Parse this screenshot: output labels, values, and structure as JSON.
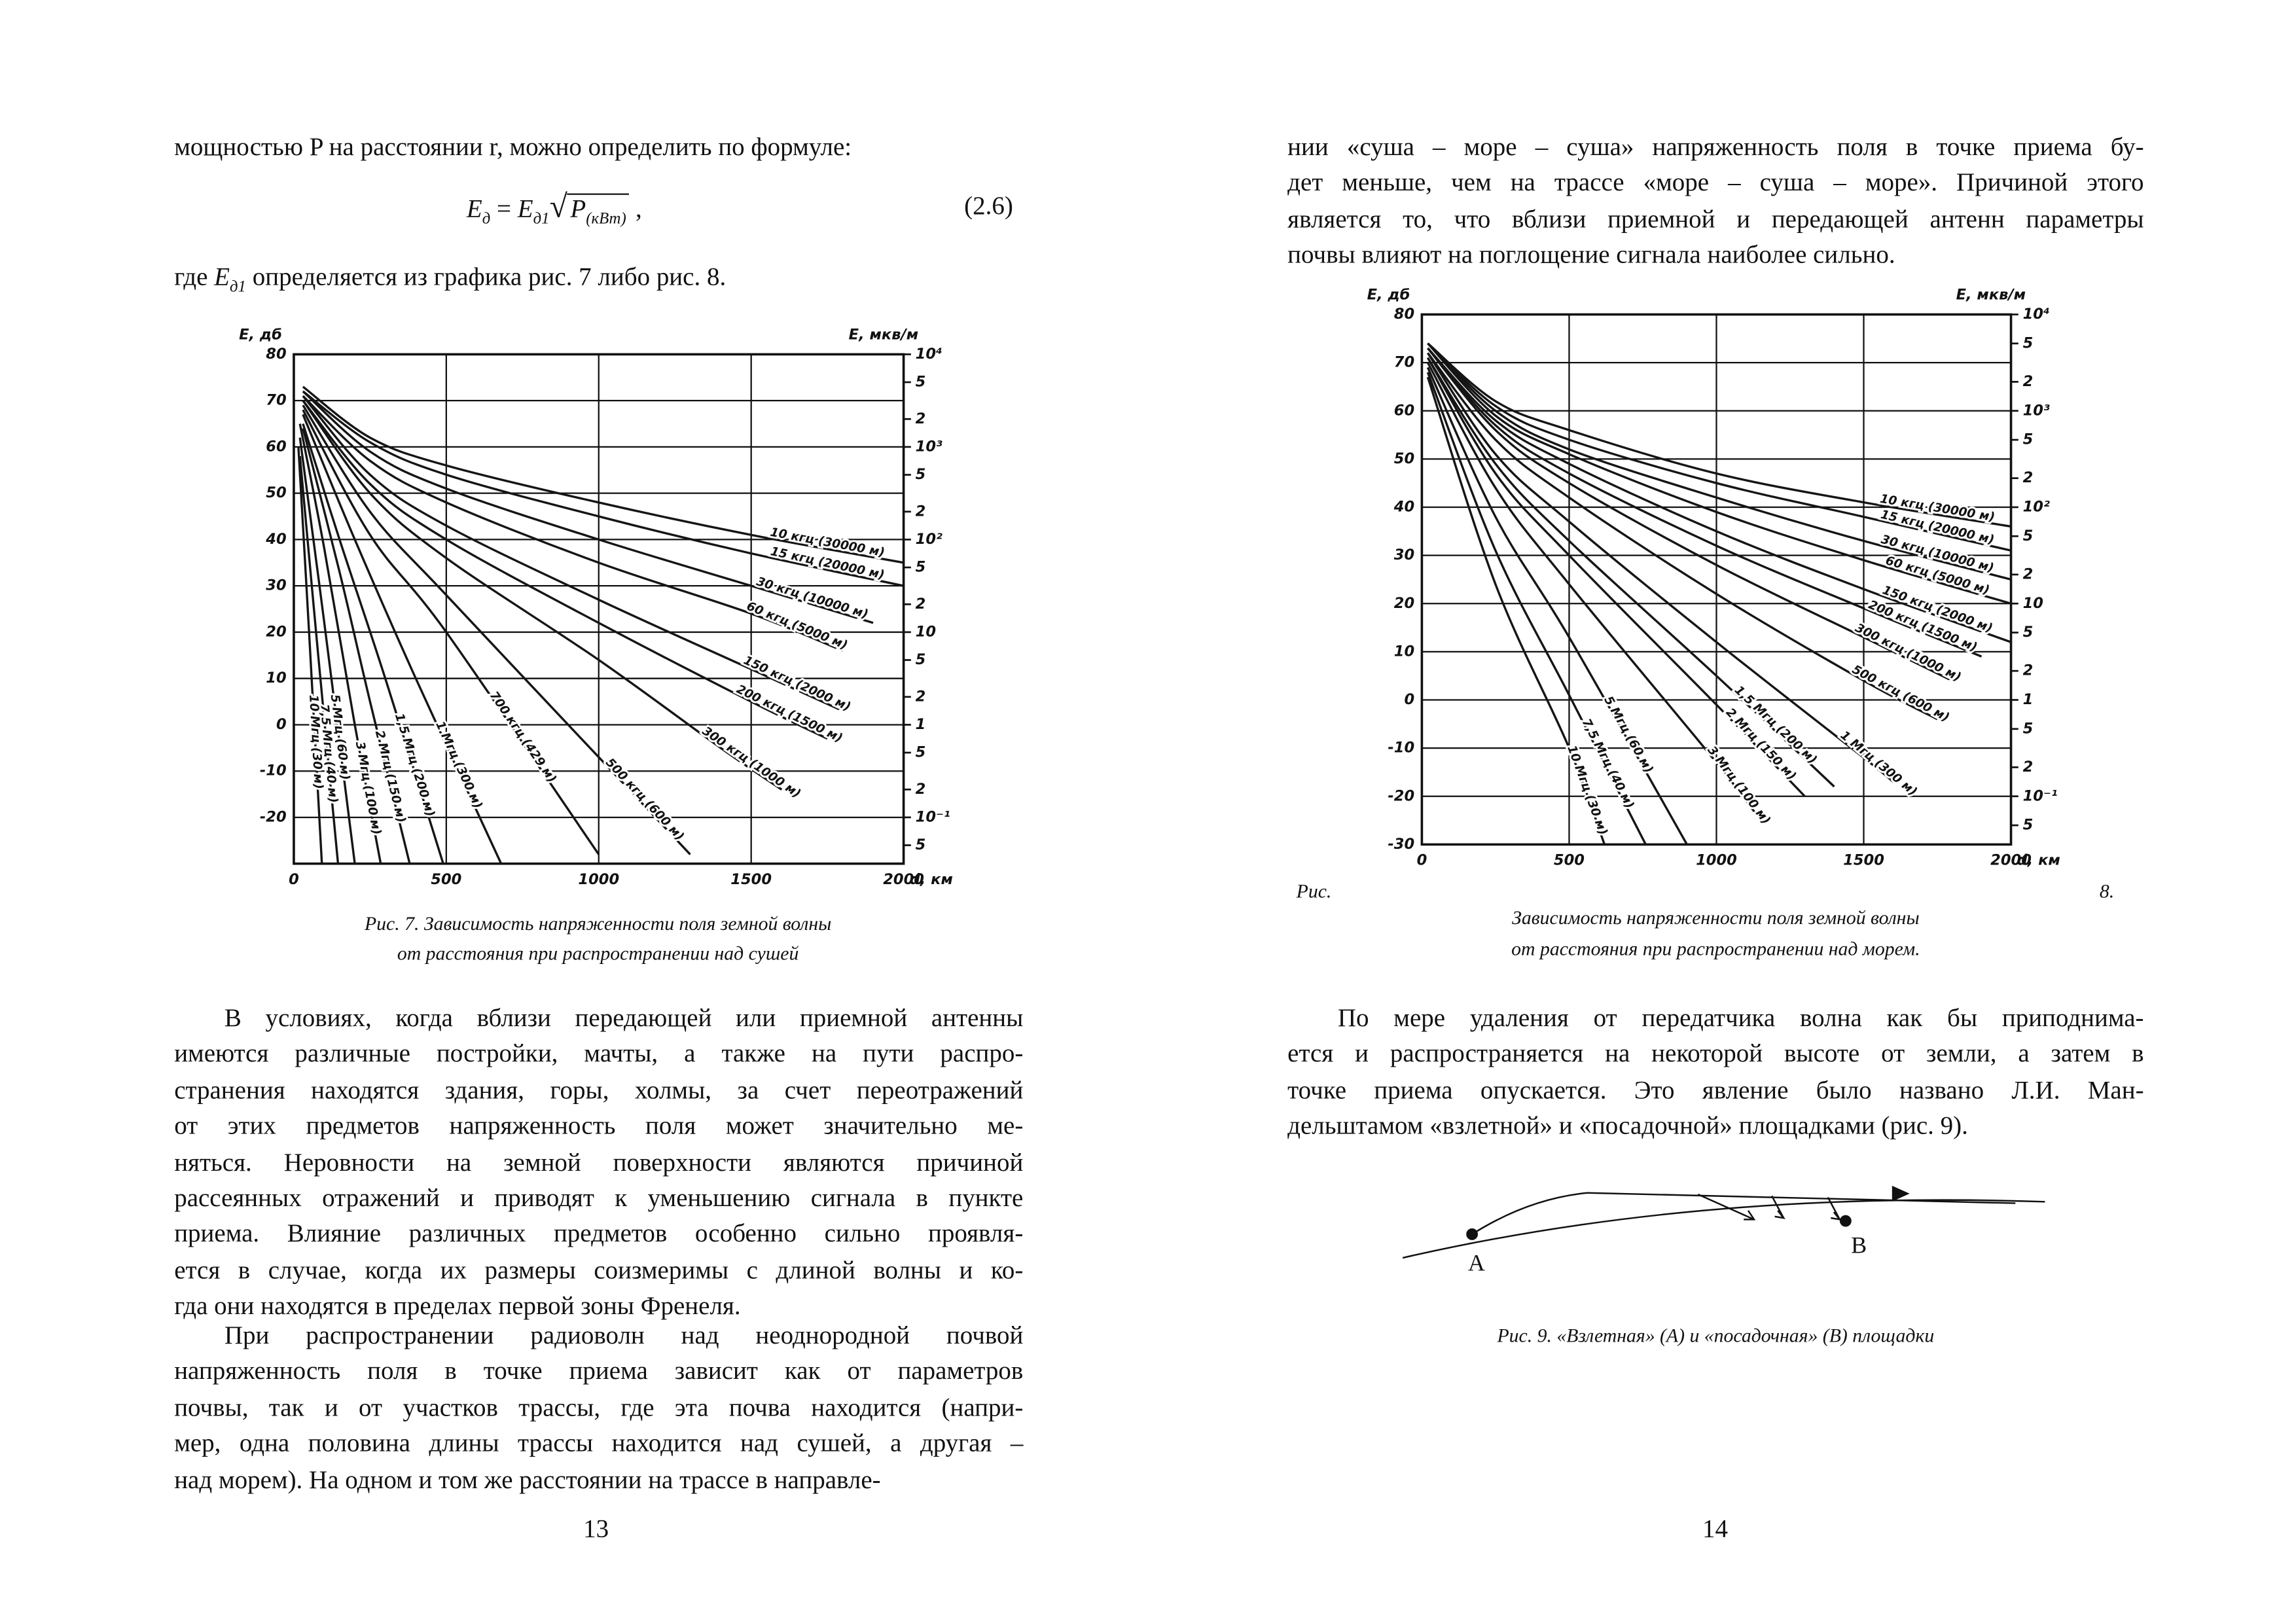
{
  "document": {
    "pages": [
      {
        "intro": "мощностью P на расстоянии r, можно определить по формуле:",
        "formula": {
          "lhs": "E",
          "lhs_sub": "д",
          "op": "=",
          "rhs": "E",
          "rhs_sub": "д1",
          "radical": "√",
          "radicand": "P",
          "radicand_sub": "(кВт)",
          "trail": ",",
          "number": "(2.6)"
        },
        "where": {
          "pre": "где",
          "symbol": "E",
          "sub": "д1",
          "post": "определяется из графика рис. 7 либо рис. 8."
        },
        "figure_caption": [
          "Рис. 7. Зависимость напряженности поля земной волны",
          "от расстояния при распространении над сушей"
        ],
        "paragraphs": [
          [
            "В условиях, когда вблизи передающей или приемной антенны",
            "имеются различные постройки, мачты, а также на пути распро-",
            "странения находятся здания, горы, холмы, за счет переотражений",
            "от этих предметов напряженность поля может значительно ме-",
            "няться. Неровности на земной поверхности являются причиной",
            "рассеянных отражений и приводят к уменьшению сигнала в пункте",
            "приема. Влияние различных предметов особенно сильно проявля-",
            "ется в случае, когда их размеры соизмеримы с длиной волны и ко-",
            "гда они находятся в пределах первой зоны Френеля."
          ],
          [
            "При распространении радиоволн над неоднородной почвой",
            "напряженность поля в точке приема зависит как от параметров",
            "почвы, так и от участков трассы, где эта почва находится (напри-",
            "мер, одна половина длины трассы находится над сушей, а другая –",
            "над морем). На одном и том же расстоянии на трассе в направле-"
          ]
        ],
        "page_number": "13"
      },
      {
        "paragraphs": [
          [
            "нии «суша – море – суша» напряженность поля в точке приема бу-",
            "дет меньше, чем на трассе «море – суша – море». Причиной этого",
            "является то, что вблизи приемной и передающей антенн параметры",
            "почвы влияют на поглощение сигнала наиболее сильно."
          ],
          [
            "По мере удаления от передатчика волна как бы приподнима-",
            "ется и распространяется на некоторой высоте от земли, а затем в",
            "точке приема опускается. Это явление было названо Л.И. Ман-",
            "дельштамом «взлетной» и «посадочной» площадками (рис. 9)."
          ]
        ],
        "figure_label": "Рис.",
        "figure_number": "8.",
        "figure_caption": [
          "Зависимость напряженности поля земной волны",
          "от расстояния при распространении над морем."
        ],
        "diagram": {
          "point_a": "А",
          "point_b": "В",
          "caption": "Рис. 9. «Взлетная» (А) и «посадочная» (В) площадки"
        },
        "page_number": "14"
      }
    ]
  },
  "chart_data": [
    {
      "type": "line",
      "y_label": "E, дб",
      "y2_label": "E, мкв/м",
      "x_label": "d, км",
      "xlim": [
        0,
        2000
      ],
      "xticks": [
        0,
        500,
        1000,
        1500,
        2000
      ],
      "ylim": [
        -30,
        80
      ],
      "yticks": [
        80,
        70,
        60,
        50,
        40,
        30,
        20,
        10,
        0,
        -10,
        -20
      ],
      "y2scale": "log",
      "y2lim": [
        0.031623,
        10000
      ],
      "y2ticks": [
        {
          "value": 10000,
          "label": "10⁴"
        },
        {
          "value": 5000,
          "label": "5"
        },
        {
          "value": 2000,
          "label": "2"
        },
        {
          "value": 1000,
          "label": "10³"
        },
        {
          "value": 500,
          "label": "5"
        },
        {
          "value": 200,
          "label": "2"
        },
        {
          "value": 100,
          "label": "10²"
        },
        {
          "value": 50,
          "label": "5"
        },
        {
          "value": 20,
          "label": "2"
        },
        10,
        {
          "value": 5,
          "label": "5"
        },
        {
          "value": 2,
          "label": "2"
        },
        1,
        {
          "value": 0.5,
          "label": "5"
        },
        {
          "value": 0.2,
          "label": "2"
        },
        {
          "value": 0.1,
          "label": "10⁻¹"
        },
        {
          "value": 0.05,
          "label": "5"
        }
      ],
      "grid": true,
      "color": "#151515",
      "series": [
        {
          "name": "10 кгц (30000 м)",
          "x": [
            30,
            250,
            500,
            1000,
            1500,
            2000
          ],
          "values": [
            73,
            62,
            56,
            48,
            41,
            35
          ]
        },
        {
          "name": "15 кгц (20000 м)",
          "x": [
            30,
            250,
            500,
            1000,
            1500,
            2000
          ],
          "values": [
            72,
            61,
            54,
            45,
            37,
            30
          ]
        },
        {
          "name": "30 кгц (10000 м)",
          "x": [
            30,
            250,
            500,
            1000,
            1500,
            1900
          ],
          "values": [
            72,
            59,
            51,
            40,
            30,
            22
          ]
        },
        {
          "name": "60 кгц (5000 м)",
          "x": [
            30,
            250,
            500,
            1000,
            1500,
            1800
          ],
          "values": [
            71,
            57,
            48,
            35,
            24,
            16
          ]
        },
        {
          "name": "150 кгц (2000 м)",
          "x": [
            30,
            250,
            500,
            1000,
            1500,
            1800
          ],
          "values": [
            71,
            54,
            43,
            27,
            12,
            3
          ]
        },
        {
          "name": "200 кгц (1500 м)",
          "x": [
            30,
            250,
            500,
            1000,
            1500,
            1750
          ],
          "values": [
            70,
            52,
            40,
            22,
            5,
            -3
          ]
        },
        {
          "name": "300 кгц (1000 м)",
          "x": [
            30,
            250,
            500,
            1000,
            1400,
            1600
          ],
          "values": [
            70,
            50,
            36,
            14,
            -5,
            -14
          ]
        },
        {
          "name": "500 кгц (600 м)",
          "x": [
            30,
            250,
            500,
            1000,
            1300
          ],
          "values": [
            69,
            46,
            28,
            -7,
            -28
          ]
        },
        {
          "name": "700 кгц (429 м)",
          "x": [
            30,
            250,
            500,
            1000
          ],
          "values": [
            68,
            41,
            20,
            -28
          ]
        },
        {
          "name": "1 Мгц (300 м)",
          "x": [
            30,
            200,
            400,
            680
          ],
          "values": [
            67,
            40,
            10,
            -30
          ]
        },
        {
          "name": "1,5 Мгц (200 м)",
          "x": [
            30,
            150,
            300,
            490
          ],
          "values": [
            65,
            40,
            10,
            -30
          ]
        },
        {
          "name": "2 Мгц (150 м)",
          "x": [
            30,
            150,
            250,
            380
          ],
          "values": [
            64,
            33,
            5,
            -30
          ]
        },
        {
          "name": "3 Мгц (100 м)",
          "x": [
            20,
            100,
            200,
            285
          ],
          "values": [
            65,
            38,
            0,
            -30
          ]
        },
        {
          "name": "5 Мгц (60 м)",
          "x": [
            20,
            100,
            200
          ],
          "values": [
            62,
            22,
            -30
          ]
        },
        {
          "name": "7,5 Мгц (40 м)",
          "x": [
            20,
            80,
            145
          ],
          "values": [
            58,
            15,
            -30
          ]
        },
        {
          "name": "10 Мгц (30 м)",
          "x": [
            15,
            50,
            92
          ],
          "values": [
            60,
            20,
            -30
          ]
        }
      ]
    },
    {
      "type": "line",
      "y_label": "E, дб",
      "y2_label": "E, мкв/м",
      "x_label": "d, км",
      "xlim": [
        0,
        2000
      ],
      "xticks": [
        0,
        500,
        1000,
        1500,
        2000
      ],
      "ylim": [
        -30,
        80
      ],
      "yticks": [
        80,
        70,
        60,
        50,
        40,
        30,
        20,
        10,
        0,
        -10,
        -20,
        -30
      ],
      "y2scale": "log",
      "y2lim": [
        0.031623,
        10000
      ],
      "y2ticks": [
        {
          "value": 10000,
          "label": "10⁴"
        },
        {
          "value": 5000,
          "label": "5"
        },
        {
          "value": 2000,
          "label": "2"
        },
        {
          "value": 1000,
          "label": "10³"
        },
        {
          "value": 500,
          "label": "5"
        },
        {
          "value": 200,
          "label": "2"
        },
        {
          "value": 100,
          "label": "10²"
        },
        {
          "value": 50,
          "label": "5"
        },
        {
          "value": 20,
          "label": "2"
        },
        10,
        {
          "value": 5,
          "label": "5"
        },
        {
          "value": 2,
          "label": "2"
        },
        1,
        {
          "value": 0.5,
          "label": "5"
        },
        {
          "value": 0.2,
          "label": "2"
        },
        {
          "value": 0.1,
          "label": "10⁻¹"
        },
        {
          "value": 0.05,
          "label": "5"
        }
      ],
      "grid": true,
      "color": "#151515",
      "series": [
        {
          "name": "10 кгц (30000 м)",
          "x": [
            20,
            250,
            500,
            1000,
            1500,
            2000
          ],
          "values": [
            74,
            62,
            56,
            47,
            41,
            36
          ]
        },
        {
          "name": "15 кгц (20000 м)",
          "x": [
            20,
            250,
            500,
            1000,
            1500,
            2000
          ],
          "values": [
            74,
            61,
            54,
            45,
            38,
            31
          ]
        },
        {
          "name": "30 кгц (10000 м)",
          "x": [
            20,
            250,
            500,
            1000,
            1500,
            2000
          ],
          "values": [
            74,
            60,
            52,
            42,
            33,
            25
          ]
        },
        {
          "name": "60 кгц (5000 м)",
          "x": [
            20,
            250,
            500,
            1000,
            1500,
            2000
          ],
          "values": [
            74,
            59,
            51,
            39,
            29,
            20
          ]
        },
        {
          "name": "150 кгц (2000 м)",
          "x": [
            20,
            250,
            500,
            1000,
            1500,
            2000
          ],
          "values": [
            73,
            58,
            49,
            35,
            23,
            12
          ]
        },
        {
          "name": "200 кгц (1500 м)",
          "x": [
            20,
            250,
            500,
            1000,
            1500,
            1900
          ],
          "values": [
            73,
            57,
            47,
            32,
            19,
            9
          ]
        },
        {
          "name": "300 кгц (1000 м)",
          "x": [
            20,
            250,
            500,
            1000,
            1500,
            1800
          ],
          "values": [
            73,
            56,
            45,
            28,
            13,
            4
          ]
        },
        {
          "name": "500 кгц (600 м)",
          "x": [
            20,
            250,
            500,
            1000,
            1500,
            1750
          ],
          "values": [
            72,
            54,
            42,
            22,
            4,
            -4
          ]
        },
        {
          "name": "1 Мгц (300 м)",
          "x": [
            20,
            250,
            500,
            1000,
            1500,
            1600
          ],
          "values": [
            72,
            51,
            37,
            12,
            -12,
            -17
          ]
        },
        {
          "name": "1,5 Мгц (200 м)",
          "x": [
            20,
            250,
            500,
            1000,
            1400
          ],
          "values": [
            71,
            49,
            33,
            5,
            -18
          ]
        },
        {
          "name": "2 Мгц (150 м)",
          "x": [
            20,
            250,
            500,
            1000,
            1300
          ],
          "values": [
            71,
            47,
            30,
            -1,
            -20
          ]
        },
        {
          "name": "3 Мгц (100 м)",
          "x": [
            20,
            250,
            500,
            1000,
            1150
          ],
          "values": [
            70,
            44,
            24,
            -13,
            -25
          ]
        },
        {
          "name": "5 Мгц (60 м)",
          "x": [
            20,
            250,
            500,
            900
          ],
          "values": [
            69,
            38,
            13,
            -30
          ]
        },
        {
          "name": "7,5 Мгц (40 м)",
          "x": [
            20,
            250,
            500,
            760
          ],
          "values": [
            68,
            31,
            1,
            -30
          ]
        },
        {
          "name": "10 Мгц (30 м)",
          "x": [
            20,
            250,
            500,
            620
          ],
          "values": [
            67,
            24,
            -10,
            -30
          ]
        }
      ]
    }
  ]
}
